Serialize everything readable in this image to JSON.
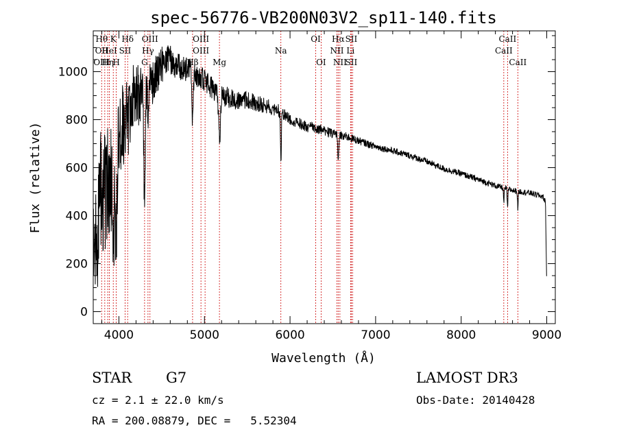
{
  "chart_data": {
    "type": "line",
    "title": "spec-56776-VB200N03V2_sp11-140.fits",
    "xlabel": "Wavelength (Å)",
    "ylabel": "Flux (relative)",
    "xlim": [
      3700,
      9100
    ],
    "ylim": [
      -50,
      1170
    ],
    "xticks": [
      4000,
      5000,
      6000,
      7000,
      8000,
      9000
    ],
    "yticks": [
      0,
      200,
      400,
      600,
      800,
      1000
    ],
    "spectrum_anchors": [
      [
        3700,
        420
      ],
      [
        3750,
        380
      ],
      [
        3800,
        500
      ],
      [
        3850,
        520
      ],
      [
        3900,
        550
      ],
      [
        3950,
        600
      ],
      [
        4000,
        700
      ],
      [
        4100,
        840
      ],
      [
        4200,
        900
      ],
      [
        4300,
        920
      ],
      [
        4400,
        960
      ],
      [
        4500,
        1030
      ],
      [
        4600,
        1050
      ],
      [
        4700,
        1020
      ],
      [
        4800,
        1010
      ],
      [
        4900,
        990
      ],
      [
        5000,
        960
      ],
      [
        5100,
        930
      ],
      [
        5200,
        900
      ],
      [
        5300,
        890
      ],
      [
        5400,
        880
      ],
      [
        5500,
        880
      ],
      [
        5600,
        870
      ],
      [
        5700,
        860
      ],
      [
        5800,
        850
      ],
      [
        5900,
        830
      ],
      [
        6000,
        800
      ],
      [
        6100,
        785
      ],
      [
        6200,
        770
      ],
      [
        6300,
        765
      ],
      [
        6400,
        755
      ],
      [
        6500,
        740
      ],
      [
        6600,
        735
      ],
      [
        6700,
        725
      ],
      [
        6800,
        712
      ],
      [
        6900,
        700
      ],
      [
        7000,
        688
      ],
      [
        7200,
        670
      ],
      [
        7400,
        650
      ],
      [
        7600,
        625
      ],
      [
        7800,
        595
      ],
      [
        8000,
        575
      ],
      [
        8200,
        550
      ],
      [
        8400,
        525
      ],
      [
        8600,
        505
      ],
      [
        8800,
        495
      ],
      [
        8950,
        480
      ],
      [
        8985,
        460
      ],
      [
        9000,
        100
      ]
    ],
    "absorption_features": [
      {
        "wavelength": 3934,
        "depth": 250,
        "width": 15
      },
      {
        "wavelength": 3969,
        "depth": 250,
        "width": 15
      },
      {
        "wavelength": 4101,
        "depth": 120,
        "width": 10
      },
      {
        "wavelength": 4300,
        "depth": 450,
        "width": 12
      },
      {
        "wavelength": 4340,
        "depth": 150,
        "width": 10
      },
      {
        "wavelength": 4861,
        "depth": 220,
        "width": 10
      },
      {
        "wavelength": 5175,
        "depth": 200,
        "width": 14
      },
      {
        "wavelength": 5893,
        "depth": 200,
        "width": 8
      },
      {
        "wavelength": 6563,
        "depth": 110,
        "width": 8
      },
      {
        "wavelength": 8498,
        "depth": 60,
        "width": 6
      },
      {
        "wavelength": 8542,
        "depth": 80,
        "width": 6
      },
      {
        "wavelength": 8662,
        "depth": 70,
        "width": 6
      }
    ],
    "noise_amplitude": [
      [
        3700,
        320
      ],
      [
        4000,
        200
      ],
      [
        4300,
        110
      ],
      [
        4600,
        60
      ],
      [
        5200,
        45
      ],
      [
        6000,
        25
      ],
      [
        7000,
        14
      ],
      [
        9000,
        12
      ]
    ],
    "line_markers": [
      {
        "wavelength": 3798,
        "labels": [
          "Hθ",
          "OII",
          "OIII"
        ]
      },
      {
        "wavelength": 3835,
        "labels": [
          "",
          "",
          ""
        ]
      },
      {
        "wavelength": 3869,
        "labels": [
          "",
          "",
          "Hη"
        ]
      },
      {
        "wavelength": 3889,
        "labels": [
          "",
          "HeI",
          ""
        ]
      },
      {
        "wavelength": 3934,
        "labels": [
          "K",
          "",
          ""
        ]
      },
      {
        "wavelength": 3969,
        "labels": [
          "",
          "",
          "H"
        ]
      },
      {
        "wavelength": 4072,
        "labels": [
          "",
          "SII",
          ""
        ]
      },
      {
        "wavelength": 4102,
        "labels": [
          "Hδ",
          "",
          ""
        ]
      },
      {
        "wavelength": 4300,
        "labels": [
          "",
          "",
          "G"
        ]
      },
      {
        "wavelength": 4340,
        "labels": [
          "",
          "Hγ",
          ""
        ]
      },
      {
        "wavelength": 4363,
        "labels": [
          "OIII",
          "",
          ""
        ]
      },
      {
        "wavelength": 4861,
        "labels": [
          "",
          "",
          "Hβ"
        ]
      },
      {
        "wavelength": 4959,
        "labels": [
          "OIII",
          "OIII",
          ""
        ]
      },
      {
        "wavelength": 5007,
        "labels": [
          "",
          "",
          ""
        ]
      },
      {
        "wavelength": 5175,
        "labels": [
          "",
          "",
          "Mg"
        ]
      },
      {
        "wavelength": 5893,
        "labels": [
          "",
          "Na",
          ""
        ]
      },
      {
        "wavelength": 6300,
        "labels": [
          "OI",
          "",
          ""
        ]
      },
      {
        "wavelength": 6363,
        "labels": [
          "",
          "",
          "OI"
        ]
      },
      {
        "wavelength": 6548,
        "labels": [
          "",
          "NII",
          ""
        ]
      },
      {
        "wavelength": 6563,
        "labels": [
          "Hα",
          "",
          ""
        ]
      },
      {
        "wavelength": 6583,
        "labels": [
          "",
          "",
          "NII"
        ]
      },
      {
        "wavelength": 6707,
        "labels": [
          "",
          "Li",
          ""
        ]
      },
      {
        "wavelength": 6716,
        "labels": [
          "SII",
          "",
          "SII"
        ]
      },
      {
        "wavelength": 6731,
        "labels": [
          "",
          "",
          ""
        ]
      },
      {
        "wavelength": 8498,
        "labels": [
          "",
          "CaII",
          ""
        ]
      },
      {
        "wavelength": 8542,
        "labels": [
          "CaII",
          "",
          ""
        ]
      },
      {
        "wavelength": 8662,
        "labels": [
          "",
          "",
          "CaII"
        ]
      }
    ]
  },
  "info": {
    "object_class": "STAR",
    "subclass": "G7",
    "survey": "LAMOST DR3",
    "redshift": "cz = 2.1 ± 22.0 km/s",
    "obs_date": "Obs-Date: 20140428",
    "coords": "RA = 200.08879, DEC =   5.52304"
  },
  "colors": {
    "spectrum": "#000000",
    "marker_line": "#cc0000",
    "axes": "#000000"
  }
}
